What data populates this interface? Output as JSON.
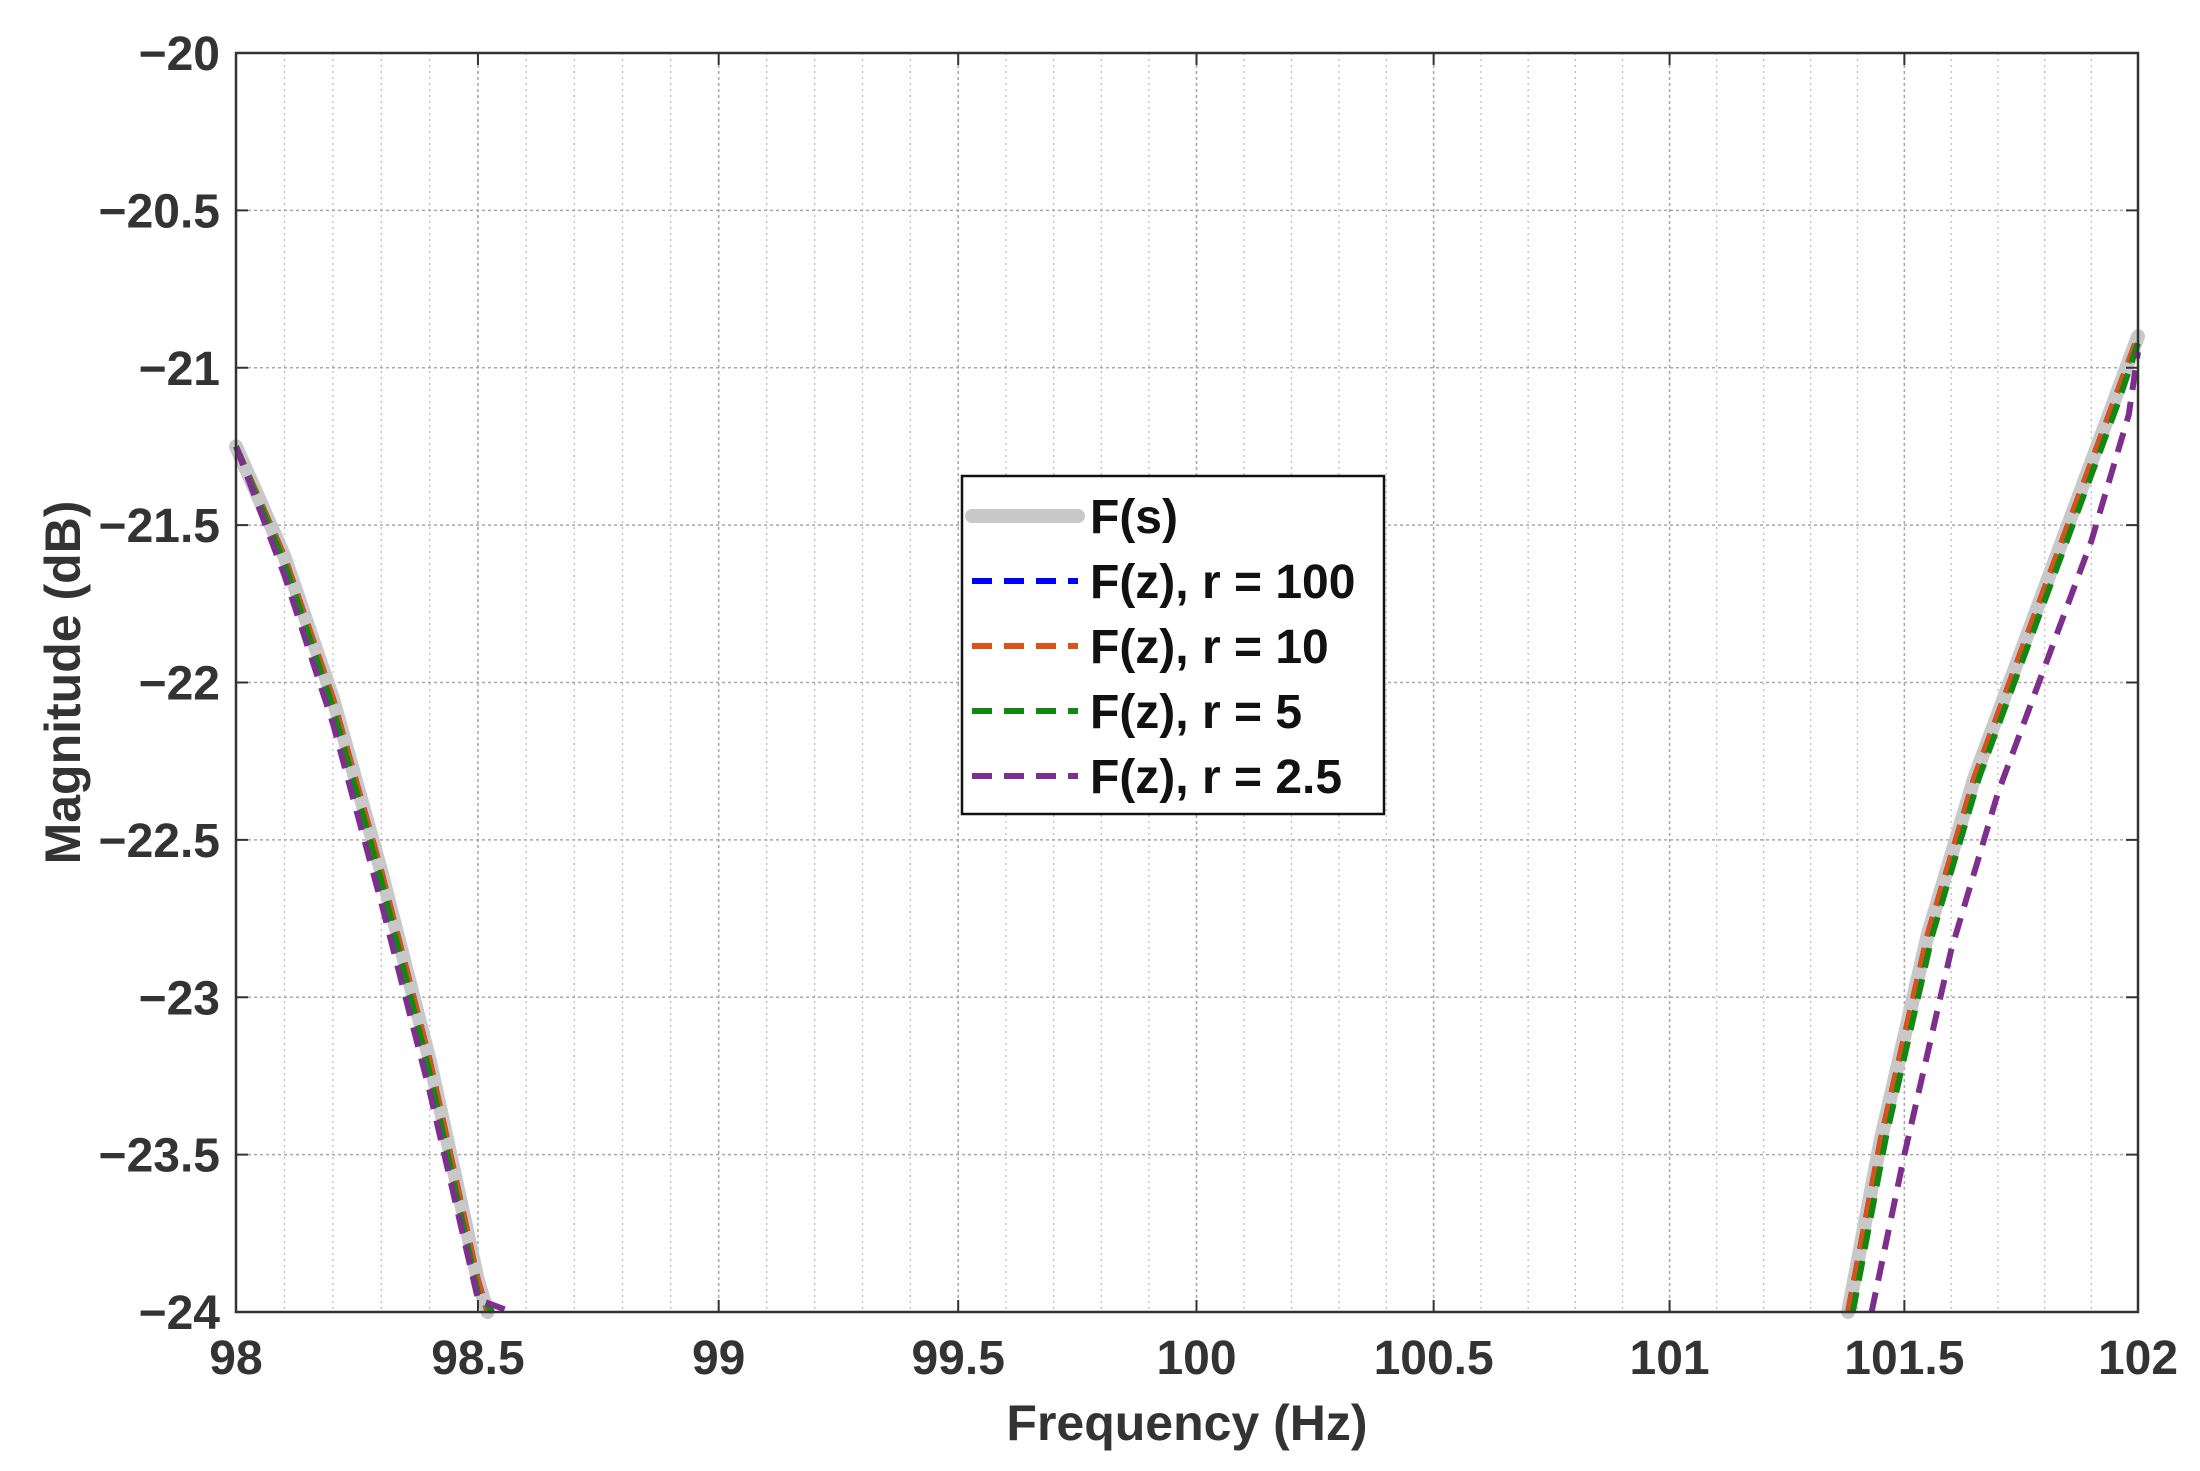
{
  "chart_data": {
    "type": "line",
    "title": "",
    "xlabel": "Frequency (Hz)",
    "ylabel": "Magnitude (dB)",
    "xlim": [
      98,
      102
    ],
    "ylim": [
      -24,
      -20
    ],
    "x_ticks": [
      98,
      98.5,
      99,
      99.5,
      100,
      100.5,
      101,
      101.5,
      102
    ],
    "x_tick_labels": [
      "98",
      "98.5",
      "99",
      "99.5",
      "100",
      "100.5",
      "101",
      "101.5",
      "102"
    ],
    "y_ticks": [
      -24,
      -23.5,
      -23,
      -22.5,
      -22,
      -21.5,
      -21,
      -20.5,
      -20
    ],
    "y_tick_labels": [
      "−24",
      "−23.5",
      "−23",
      "−22.5",
      "−22",
      "−21.5",
      "−21",
      "−20.5",
      "−20"
    ],
    "x_scale": "log",
    "grid": true,
    "legend_position": "center",
    "series": [
      {
        "name": "F(s)",
        "color": "#c8c8c8",
        "style": "solid",
        "segments": [
          [
            [
              98.0,
              -21.25
            ],
            [
              98.1,
              -21.6
            ],
            [
              98.2,
              -22.05
            ],
            [
              98.3,
              -22.6
            ],
            [
              98.4,
              -23.2
            ],
            [
              98.5,
              -23.9
            ],
            [
              98.52,
              -24.0
            ]
          ],
          [
            [
              101.38,
              -24.0
            ],
            [
              101.45,
              -23.45
            ],
            [
              101.55,
              -22.8
            ],
            [
              101.65,
              -22.3
            ],
            [
              101.75,
              -21.9
            ],
            [
              101.85,
              -21.5
            ],
            [
              101.95,
              -21.1
            ],
            [
              102.0,
              -20.9
            ]
          ]
        ]
      },
      {
        "name": "F(z), r = 100",
        "color": "#0000ff",
        "style": "dashed",
        "segments": [
          [
            [
              98.0,
              -21.25
            ],
            [
              98.1,
              -21.6
            ],
            [
              98.2,
              -22.05
            ],
            [
              98.3,
              -22.6
            ],
            [
              98.4,
              -23.2
            ],
            [
              98.5,
              -23.9
            ],
            [
              98.52,
              -24.0
            ]
          ],
          [
            [
              101.38,
              -24.0
            ],
            [
              101.45,
              -23.45
            ],
            [
              101.55,
              -22.8
            ],
            [
              101.65,
              -22.3
            ],
            [
              101.75,
              -21.9
            ],
            [
              101.85,
              -21.5
            ],
            [
              101.95,
              -21.1
            ],
            [
              102.0,
              -20.9
            ]
          ]
        ]
      },
      {
        "name": "F(z), r = 10",
        "color": "#d95319",
        "style": "dashed",
        "segments": [
          [
            [
              98.0,
              -21.25
            ],
            [
              98.1,
              -21.6
            ],
            [
              98.2,
              -22.05
            ],
            [
              98.3,
              -22.6
            ],
            [
              98.4,
              -23.2
            ],
            [
              98.5,
              -23.9
            ],
            [
              98.52,
              -24.0
            ]
          ],
          [
            [
              101.38,
              -24.0
            ],
            [
              101.45,
              -23.45
            ],
            [
              101.55,
              -22.8
            ],
            [
              101.65,
              -22.3
            ],
            [
              101.75,
              -21.9
            ],
            [
              101.85,
              -21.5
            ],
            [
              101.95,
              -21.1
            ],
            [
              102.0,
              -20.9
            ]
          ]
        ]
      },
      {
        "name": "F(z), r = 5",
        "color": "#118811",
        "style": "dashed",
        "segments": [
          [
            [
              98.0,
              -21.25
            ],
            [
              98.1,
              -21.62
            ],
            [
              98.2,
              -22.08
            ],
            [
              98.3,
              -22.63
            ],
            [
              98.4,
              -23.24
            ],
            [
              98.5,
              -23.94
            ],
            [
              98.53,
              -24.0
            ]
          ],
          [
            [
              101.39,
              -24.0
            ],
            [
              101.46,
              -23.45
            ],
            [
              101.56,
              -22.8
            ],
            [
              101.66,
              -22.3
            ],
            [
              101.76,
              -21.9
            ],
            [
              101.86,
              -21.5
            ],
            [
              101.96,
              -21.1
            ],
            [
              102.0,
              -20.92
            ]
          ]
        ]
      },
      {
        "name": "F(z), r = 2.5",
        "color": "#7e2f8e",
        "style": "dashed",
        "segments": [
          [
            [
              98.0,
              -21.25
            ],
            [
              98.1,
              -21.66
            ],
            [
              98.2,
              -22.13
            ],
            [
              98.3,
              -22.7
            ],
            [
              98.4,
              -23.3
            ],
            [
              98.5,
              -23.96
            ],
            [
              98.57,
              -24.0
            ]
          ],
          [
            [
              101.43,
              -24.0
            ],
            [
              101.5,
              -23.5
            ],
            [
              101.6,
              -22.85
            ],
            [
              101.7,
              -22.35
            ],
            [
              101.8,
              -21.95
            ],
            [
              101.9,
              -21.55
            ],
            [
              101.98,
              -21.15
            ],
            [
              102.0,
              -20.95
            ]
          ]
        ]
      }
    ]
  }
}
